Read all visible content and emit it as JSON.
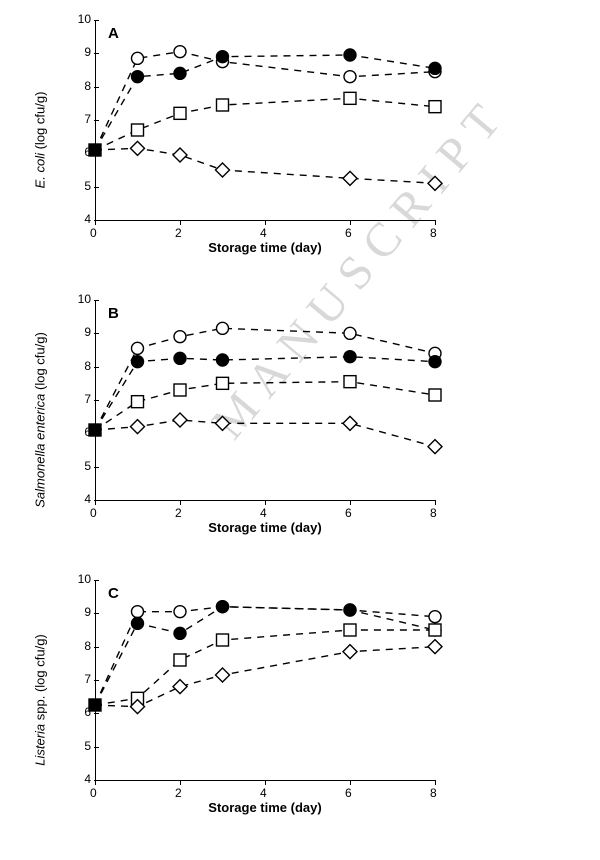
{
  "watermark": "MANUSCRIPT",
  "common": {
    "x_values": [
      0,
      1,
      2,
      3,
      6,
      8
    ],
    "xlim": [
      0,
      8
    ],
    "ylim": [
      4,
      10
    ],
    "xtick_step": 2,
    "ytick_step": 1,
    "xlabel": "Storage time (day)",
    "dash": "7,6",
    "stroke_color": "#000000",
    "stroke_width": 1.4,
    "marker_size": 6,
    "label_fontsize": 13,
    "tick_fontsize": 12,
    "background_color": "#ffffff"
  },
  "markers": {
    "open_circle": {
      "shape": "circle",
      "fill": "#ffffff"
    },
    "filled_circle": {
      "shape": "circle",
      "fill": "#000000"
    },
    "open_square": {
      "shape": "square",
      "fill": "#ffffff"
    },
    "open_diamond": {
      "shape": "diamond",
      "fill": "#ffffff"
    },
    "start_square": {
      "shape": "square",
      "fill": "#000000"
    }
  },
  "panels": [
    {
      "id": "A",
      "ylabel_html": "<i>E. coli</i> (log cfu/g)",
      "start": 6.1,
      "series": [
        {
          "marker": "open_circle",
          "y": [
            6.1,
            8.85,
            9.05,
            8.75,
            8.3,
            8.45
          ]
        },
        {
          "marker": "filled_circle",
          "y": [
            6.1,
            8.3,
            8.4,
            8.9,
            8.95,
            8.55
          ]
        },
        {
          "marker": "open_square",
          "y": [
            6.1,
            6.7,
            7.2,
            7.45,
            7.65,
            7.4
          ]
        },
        {
          "marker": "open_diamond",
          "y": [
            6.1,
            6.15,
            5.95,
            5.5,
            5.25,
            5.1
          ]
        }
      ]
    },
    {
      "id": "B",
      "ylabel_html": "<i>Salmonella enterica</i> (log cfu/g)",
      "start": 6.1,
      "series": [
        {
          "marker": "open_circle",
          "y": [
            6.1,
            8.55,
            8.9,
            9.15,
            9.0,
            8.4
          ]
        },
        {
          "marker": "filled_circle",
          "y": [
            6.1,
            8.15,
            8.25,
            8.2,
            8.3,
            8.15
          ]
        },
        {
          "marker": "open_square",
          "y": [
            6.1,
            6.95,
            7.3,
            7.5,
            7.55,
            7.15
          ]
        },
        {
          "marker": "open_diamond",
          "y": [
            6.1,
            6.2,
            6.4,
            6.3,
            6.3,
            5.6
          ]
        }
      ]
    },
    {
      "id": "C",
      "ylabel_html": "<i>Listeria</i> spp. (log cfu/g)",
      "start": 6.25,
      "series": [
        {
          "marker": "open_circle",
          "y": [
            6.25,
            9.05,
            9.05,
            9.2,
            9.1,
            8.9
          ]
        },
        {
          "marker": "filled_circle",
          "y": [
            6.25,
            8.7,
            8.4,
            9.2,
            9.1,
            8.5
          ]
        },
        {
          "marker": "open_square",
          "y": [
            6.25,
            6.45,
            7.6,
            8.2,
            8.5,
            8.5
          ]
        },
        {
          "marker": "open_diamond",
          "y": [
            6.25,
            6.2,
            6.8,
            7.15,
            7.85,
            8.0
          ]
        }
      ]
    }
  ]
}
